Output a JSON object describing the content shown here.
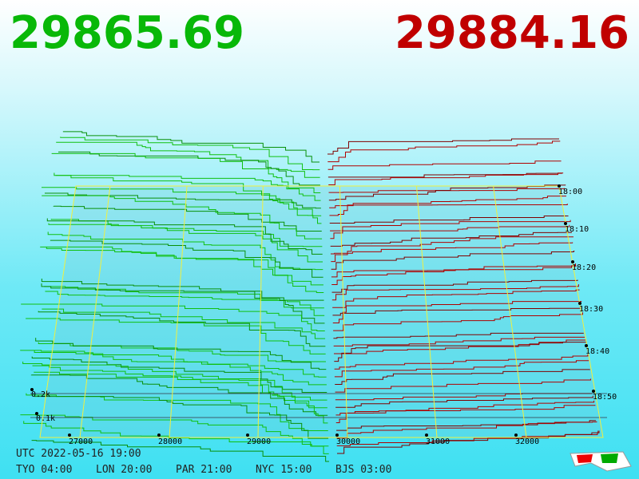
{
  "header": {
    "bid": "29865.69",
    "ask": "29884.16"
  },
  "price_axis": [
    "27000",
    "28000",
    "29000",
    "30000",
    "31000",
    "32000"
  ],
  "time_axis": [
    "18:00",
    "18:10",
    "18:20",
    "18:30",
    "18:40",
    "18:50"
  ],
  "depth_axis": [
    "0.2k",
    "0.1k"
  ],
  "footer": {
    "utc": "UTC 2022-05-16 19:00",
    "zones": [
      "TYO 04:00",
      "LON 20:00",
      "PAR 21:00",
      "NYC 15:00",
      "BJS 03:00"
    ]
  }
}
